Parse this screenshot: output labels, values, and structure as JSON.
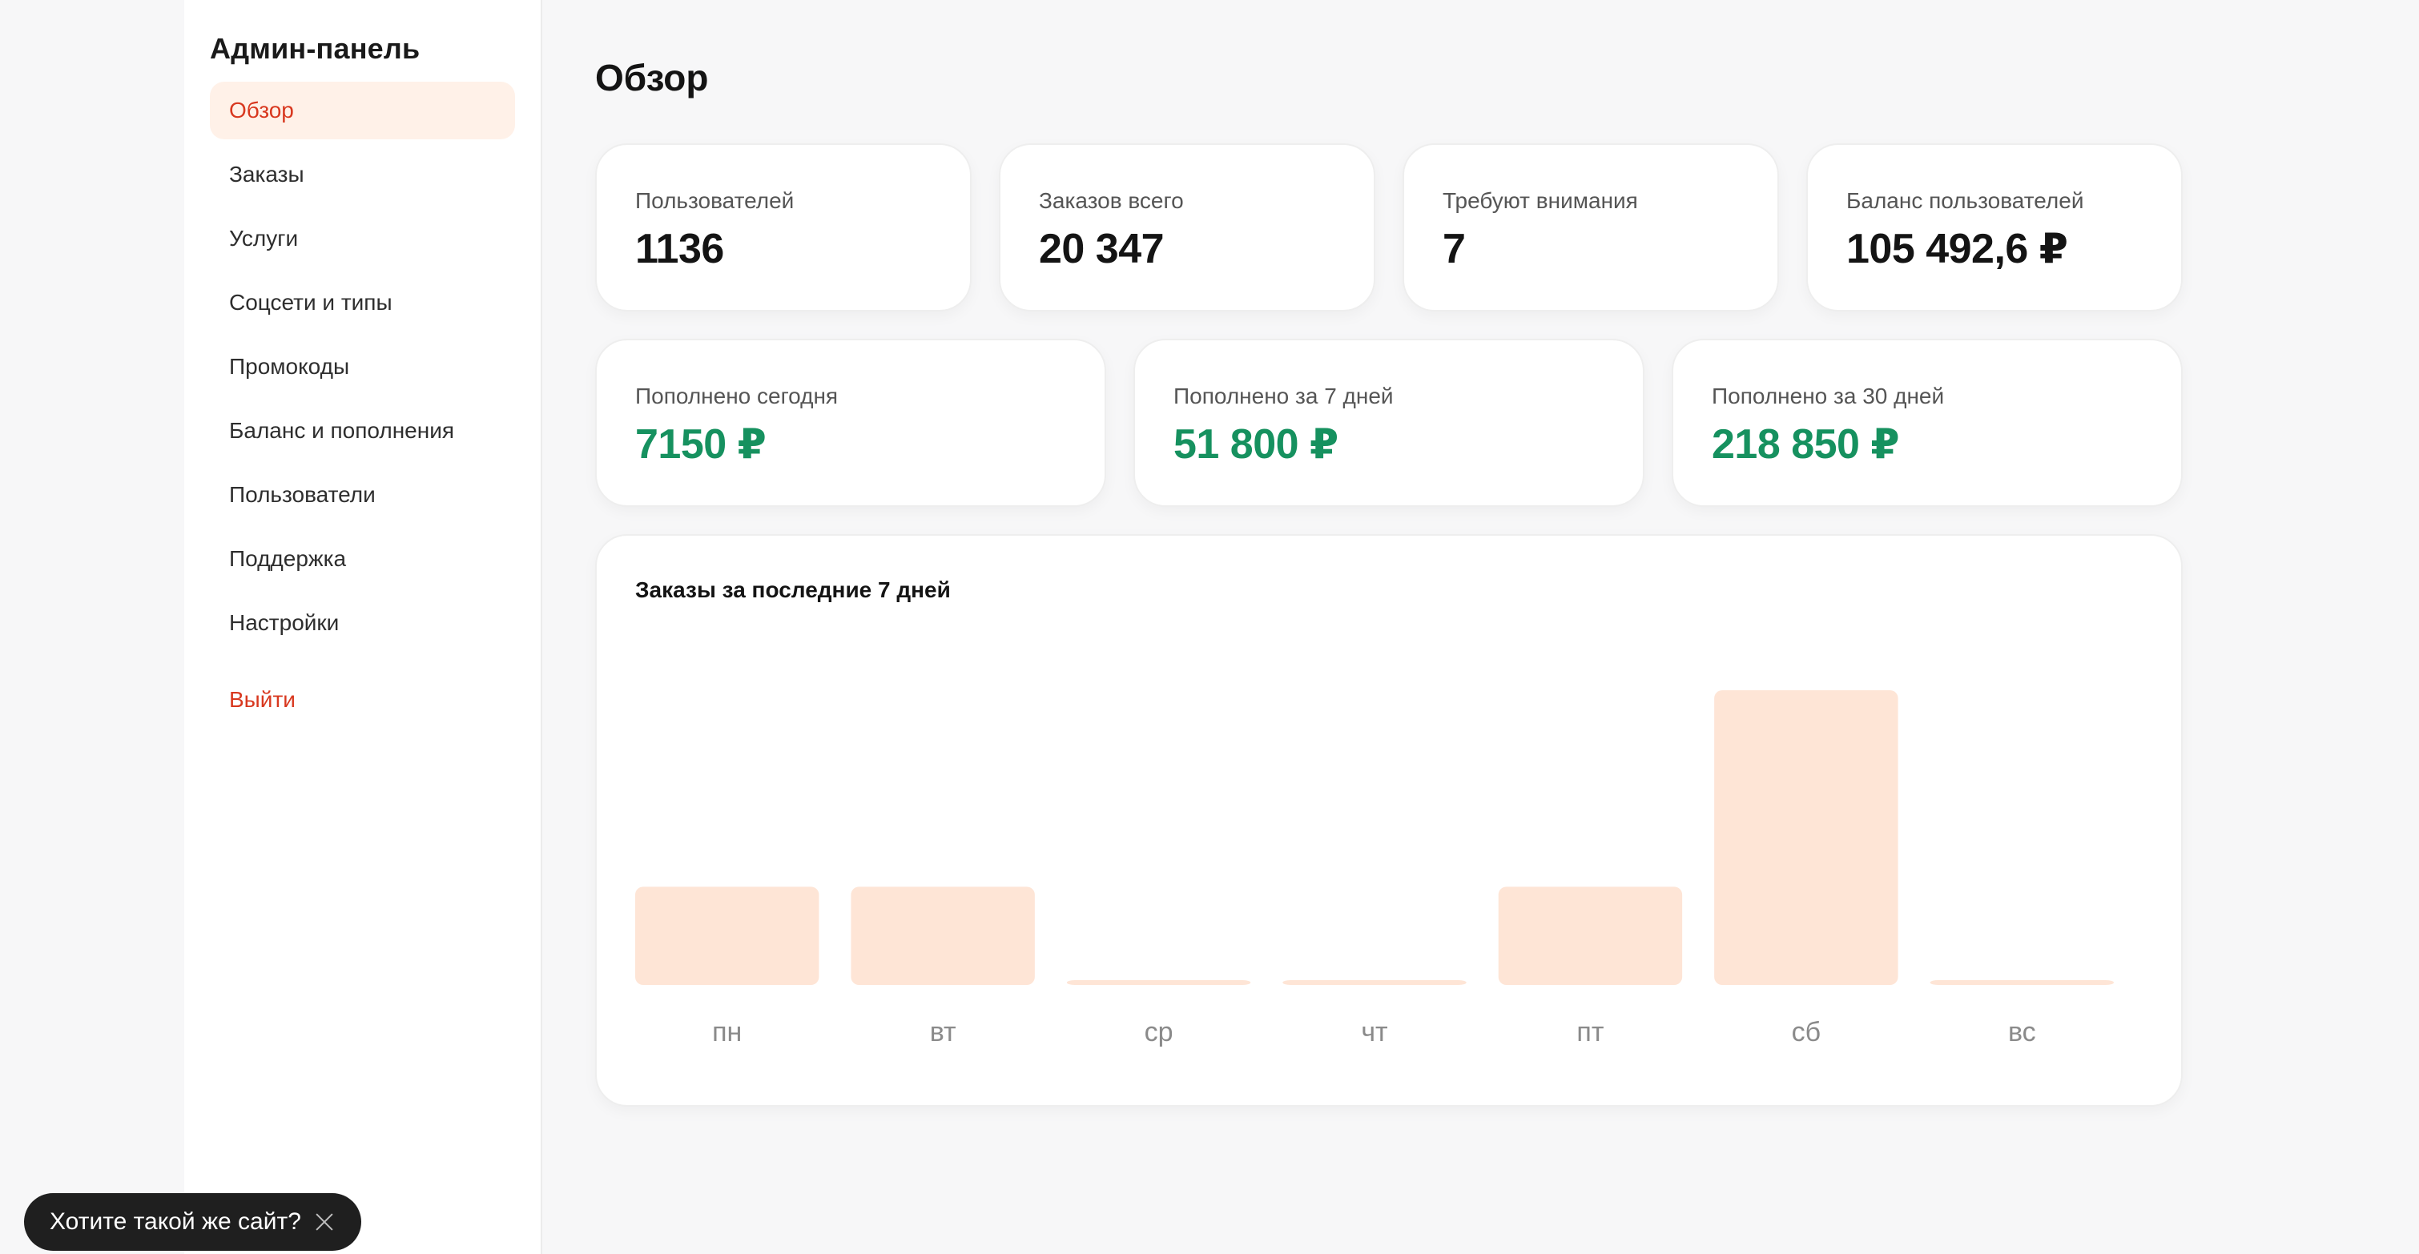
{
  "sidebar": {
    "title": "Админ-панель",
    "items": [
      {
        "label": "Обзор",
        "active": true
      },
      {
        "label": "Заказы"
      },
      {
        "label": "Услуги"
      },
      {
        "label": "Соцсети и типы"
      },
      {
        "label": "Промокоды"
      },
      {
        "label": "Баланс и пополнения"
      },
      {
        "label": "Пользователи"
      },
      {
        "label": "Поддержка"
      },
      {
        "label": "Настройки"
      }
    ],
    "logout_label": "Выйти"
  },
  "main": {
    "title": "Обзор",
    "stats_row1": [
      {
        "label": "Пользователей",
        "value": "1136"
      },
      {
        "label": "Заказов всего",
        "value": "20 347"
      },
      {
        "label": "Требуют внимания",
        "value": "7"
      },
      {
        "label": "Баланс пользователей",
        "value": "105 492,6 ₽"
      }
    ],
    "stats_row2": [
      {
        "label": "Пополнено сегодня",
        "value": "7150 ₽"
      },
      {
        "label": "Пополнено за 7 дней",
        "value": "51 800 ₽"
      },
      {
        "label": "Пополнено за 30 дней",
        "value": "218 850 ₽"
      }
    ]
  },
  "chart_data": {
    "type": "bar",
    "title": "Заказы за последние 7 дней",
    "categories": [
      "пн",
      "вт",
      "ср",
      "чт",
      "пт",
      "сб",
      "вс"
    ],
    "values": [
      1,
      1,
      0,
      0,
      1,
      3,
      0
    ],
    "xlabel": "",
    "ylabel": "",
    "grid": false,
    "bar_color": "#fee5d6"
  },
  "toast": {
    "text": "Хотите такой же сайт?"
  },
  "colors": {
    "accent": "#d8381f",
    "active_bg": "#fff1e8",
    "positive": "#16915f"
  }
}
